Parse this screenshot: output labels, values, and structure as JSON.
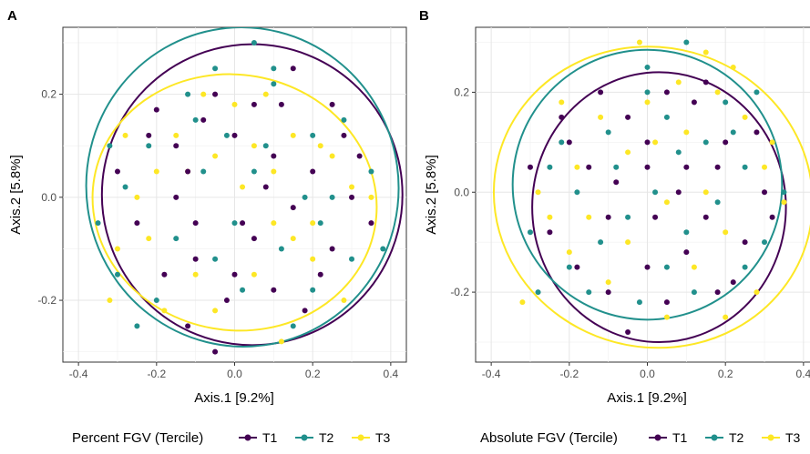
{
  "chart_data": [
    {
      "type": "scatter",
      "panel_label": "A",
      "xlabel": "Axis.1   [9.2%]",
      "ylabel": "Axis.2   [5.8%]",
      "xlim": [
        -0.44,
        0.44
      ],
      "ylim": [
        -0.32,
        0.33
      ],
      "x_ticks": [
        -0.4,
        -0.2,
        0.0,
        0.2,
        0.4
      ],
      "x_tick_labels": [
        "-0.4",
        "-0.2",
        "0.0",
        "0.2",
        "0.4"
      ],
      "y_ticks": [
        -0.2,
        0.0,
        0.2
      ],
      "y_tick_labels": [
        "-0.2",
        "0.0",
        "0.2"
      ],
      "grid": true,
      "legend": {
        "title": "Percent FGV (Tercile)",
        "placement": "bottom",
        "entries": [
          "T1",
          "T2",
          "T3"
        ]
      },
      "series": [
        {
          "name": "T1",
          "color": "#440154",
          "ellipse": {
            "cx": 0.045,
            "cy": 0.005,
            "rx": 0.385,
            "ry": 0.292,
            "angle": 0
          },
          "points": [
            [
              -0.2,
              0.17
            ],
            [
              -0.15,
              0.1
            ],
            [
              -0.12,
              0.05
            ],
            [
              -0.1,
              -0.05
            ],
            [
              -0.05,
              0.2
            ],
            [
              0.0,
              0.12
            ],
            [
              0.05,
              0.18
            ],
            [
              0.1,
              0.08
            ],
            [
              0.15,
              -0.02
            ],
            [
              0.2,
              0.05
            ],
            [
              0.25,
              -0.1
            ],
            [
              0.3,
              0.0
            ],
            [
              -0.25,
              -0.05
            ],
            [
              -0.18,
              -0.15
            ],
            [
              -0.1,
              -0.12
            ],
            [
              -0.02,
              -0.2
            ],
            [
              0.05,
              -0.08
            ],
            [
              0.1,
              -0.18
            ],
            [
              0.18,
              -0.22
            ],
            [
              0.22,
              -0.15
            ],
            [
              -0.3,
              0.05
            ],
            [
              -0.08,
              0.15
            ],
            [
              0.12,
              0.18
            ],
            [
              0.28,
              0.12
            ],
            [
              0.02,
              -0.05
            ],
            [
              -0.15,
              0.0
            ],
            [
              0.08,
              0.02
            ],
            [
              0.35,
              -0.05
            ],
            [
              -0.05,
              -0.3
            ],
            [
              0.15,
              0.25
            ],
            [
              -0.22,
              0.12
            ],
            [
              0.25,
              0.18
            ],
            [
              -0.12,
              -0.25
            ],
            [
              0.0,
              -0.15
            ],
            [
              0.32,
              0.08
            ]
          ]
        },
        {
          "name": "T2",
          "color": "#21908C",
          "ellipse": {
            "cx": 0.02,
            "cy": 0.02,
            "rx": 0.4,
            "ry": 0.31,
            "angle": 8
          },
          "points": [
            [
              -0.35,
              -0.05
            ],
            [
              -0.3,
              -0.15
            ],
            [
              -0.22,
              0.1
            ],
            [
              -0.15,
              -0.08
            ],
            [
              -0.05,
              0.25
            ],
            [
              0.05,
              0.3
            ],
            [
              0.1,
              0.22
            ],
            [
              0.05,
              0.05
            ],
            [
              -0.08,
              0.05
            ],
            [
              0.2,
              0.12
            ],
            [
              0.25,
              0.0
            ],
            [
              0.3,
              -0.12
            ],
            [
              0.35,
              0.05
            ],
            [
              -0.1,
              0.15
            ],
            [
              0.0,
              -0.05
            ],
            [
              0.12,
              -0.1
            ],
            [
              -0.2,
              -0.2
            ],
            [
              -0.28,
              0.02
            ],
            [
              0.15,
              -0.25
            ],
            [
              0.2,
              -0.18
            ],
            [
              -0.12,
              0.2
            ],
            [
              0.08,
              0.1
            ],
            [
              -0.02,
              0.12
            ],
            [
              0.28,
              0.15
            ],
            [
              0.1,
              0.25
            ],
            [
              -0.25,
              -0.25
            ],
            [
              0.02,
              -0.18
            ],
            [
              0.18,
              0.0
            ],
            [
              -0.05,
              -0.12
            ],
            [
              0.22,
              -0.05
            ],
            [
              -0.32,
              0.1
            ],
            [
              0.38,
              -0.1
            ]
          ]
        },
        {
          "name": "T3",
          "color": "#FDE725",
          "ellipse": {
            "cx": 0.0,
            "cy": -0.01,
            "rx": 0.365,
            "ry": 0.248,
            "angle": -10
          },
          "points": [
            [
              -0.3,
              -0.1
            ],
            [
              -0.25,
              0.0
            ],
            [
              -0.2,
              0.05
            ],
            [
              -0.15,
              0.12
            ],
            [
              -0.05,
              0.08
            ],
            [
              0.0,
              0.18
            ],
            [
              0.05,
              0.1
            ],
            [
              0.1,
              0.05
            ],
            [
              0.15,
              0.12
            ],
            [
              0.2,
              -0.05
            ],
            [
              0.25,
              0.08
            ],
            [
              0.3,
              0.02
            ],
            [
              -0.1,
              -0.15
            ],
            [
              -0.05,
              -0.22
            ],
            [
              0.05,
              -0.15
            ],
            [
              0.12,
              -0.28
            ],
            [
              0.2,
              -0.12
            ],
            [
              -0.22,
              -0.08
            ],
            [
              -0.32,
              -0.2
            ],
            [
              0.28,
              -0.2
            ],
            [
              0.08,
              0.2
            ],
            [
              -0.18,
              -0.22
            ],
            [
              0.22,
              0.1
            ],
            [
              0.35,
              0.0
            ],
            [
              -0.08,
              0.2
            ],
            [
              0.02,
              0.02
            ],
            [
              0.15,
              -0.08
            ],
            [
              -0.28,
              0.12
            ],
            [
              0.1,
              -0.05
            ],
            [
              -0.12,
              0.05
            ]
          ]
        }
      ]
    },
    {
      "type": "scatter",
      "panel_label": "B",
      "xlabel": "Axis.1   [9.2%]",
      "ylabel": "Axis.2   [5.8%]",
      "xlim": [
        -0.44,
        0.44
      ],
      "ylim": [
        -0.34,
        0.33
      ],
      "x_ticks": [
        -0.4,
        -0.2,
        0.0,
        0.2,
        0.4
      ],
      "x_tick_labels": [
        "-0.4",
        "-0.2",
        "0.0",
        "0.2",
        "0.4"
      ],
      "y_ticks": [
        -0.2,
        0.0,
        0.2
      ],
      "y_tick_labels": [
        "-0.2",
        "0.0",
        "0.2"
      ],
      "grid": true,
      "legend": {
        "title": "Absolute FGV (Tercile)",
        "placement": "bottom",
        "entries": [
          "T1",
          "T2",
          "T3"
        ]
      },
      "series": [
        {
          "name": "T1",
          "color": "#440154",
          "ellipse": {
            "cx": 0.03,
            "cy": -0.03,
            "rx": 0.325,
            "ry": 0.27,
            "angle": 0
          },
          "points": [
            [
              -0.2,
              0.1
            ],
            [
              -0.15,
              0.05
            ],
            [
              -0.1,
              -0.05
            ],
            [
              -0.05,
              0.15
            ],
            [
              0.0,
              0.1
            ],
            [
              0.05,
              0.2
            ],
            [
              0.1,
              0.05
            ],
            [
              0.15,
              -0.05
            ],
            [
              0.2,
              0.1
            ],
            [
              0.25,
              -0.1
            ],
            [
              0.3,
              0.0
            ],
            [
              -0.25,
              -0.08
            ],
            [
              -0.18,
              -0.15
            ],
            [
              -0.1,
              -0.2
            ],
            [
              0.0,
              -0.15
            ],
            [
              0.05,
              -0.22
            ],
            [
              0.1,
              -0.12
            ],
            [
              0.18,
              -0.2
            ],
            [
              -0.3,
              0.05
            ],
            [
              -0.08,
              0.02
            ],
            [
              0.12,
              0.18
            ],
            [
              0.28,
              0.12
            ],
            [
              0.02,
              -0.05
            ],
            [
              0.08,
              0.0
            ],
            [
              0.22,
              -0.18
            ],
            [
              -0.05,
              -0.28
            ],
            [
              0.15,
              0.22
            ],
            [
              -0.22,
              0.15
            ],
            [
              0.32,
              -0.05
            ],
            [
              0.0,
              0.05
            ],
            [
              -0.12,
              0.2
            ],
            [
              0.18,
              0.05
            ]
          ]
        },
        {
          "name": "T2",
          "color": "#21908C",
          "ellipse": {
            "cx": 0.0,
            "cy": 0.015,
            "rx": 0.345,
            "ry": 0.27,
            "angle": 10
          },
          "points": [
            [
              -0.3,
              -0.08
            ],
            [
              -0.25,
              0.05
            ],
            [
              -0.2,
              -0.15
            ],
            [
              -0.1,
              0.12
            ],
            [
              -0.05,
              -0.05
            ],
            [
              0.0,
              0.25
            ],
            [
              0.05,
              0.15
            ],
            [
              0.1,
              -0.08
            ],
            [
              0.15,
              0.1
            ],
            [
              0.2,
              0.18
            ],
            [
              0.25,
              0.05
            ],
            [
              0.3,
              -0.1
            ],
            [
              -0.15,
              -0.2
            ],
            [
              0.05,
              -0.15
            ],
            [
              0.1,
              0.3
            ],
            [
              -0.08,
              0.05
            ],
            [
              0.02,
              0.0
            ],
            [
              0.18,
              -0.02
            ],
            [
              -0.22,
              0.1
            ],
            [
              0.28,
              0.2
            ],
            [
              -0.02,
              -0.22
            ],
            [
              0.12,
              -0.2
            ],
            [
              0.25,
              -0.15
            ],
            [
              -0.18,
              0.0
            ],
            [
              0.35,
              0.0
            ],
            [
              -0.12,
              -0.1
            ],
            [
              0.08,
              0.08
            ],
            [
              0.22,
              0.12
            ],
            [
              -0.28,
              -0.2
            ],
            [
              0.0,
              0.2
            ]
          ]
        },
        {
          "name": "T3",
          "color": "#FDE725",
          "ellipse": {
            "cx": 0.015,
            "cy": -0.01,
            "rx": 0.41,
            "ry": 0.3,
            "angle": -15
          },
          "points": [
            [
              -0.32,
              -0.22
            ],
            [
              -0.25,
              -0.05
            ],
            [
              -0.18,
              0.05
            ],
            [
              -0.12,
              0.15
            ],
            [
              -0.05,
              0.08
            ],
            [
              0.0,
              0.18
            ],
            [
              0.05,
              -0.02
            ],
            [
              0.1,
              0.12
            ],
            [
              0.15,
              0.0
            ],
            [
              0.2,
              -0.08
            ],
            [
              0.25,
              0.15
            ],
            [
              0.3,
              0.05
            ],
            [
              -0.2,
              -0.12
            ],
            [
              -0.1,
              -0.18
            ],
            [
              0.05,
              -0.25
            ],
            [
              0.12,
              -0.15
            ],
            [
              0.18,
              0.2
            ],
            [
              -0.02,
              0.3
            ],
            [
              0.22,
              0.25
            ],
            [
              0.35,
              -0.02
            ],
            [
              -0.28,
              0.0
            ],
            [
              0.08,
              0.22
            ],
            [
              -0.15,
              -0.05
            ],
            [
              0.28,
              -0.2
            ],
            [
              0.2,
              -0.25
            ],
            [
              0.02,
              0.1
            ],
            [
              -0.05,
              -0.1
            ],
            [
              0.32,
              0.1
            ],
            [
              0.15,
              0.28
            ],
            [
              -0.22,
              0.18
            ]
          ]
        }
      ]
    }
  ]
}
